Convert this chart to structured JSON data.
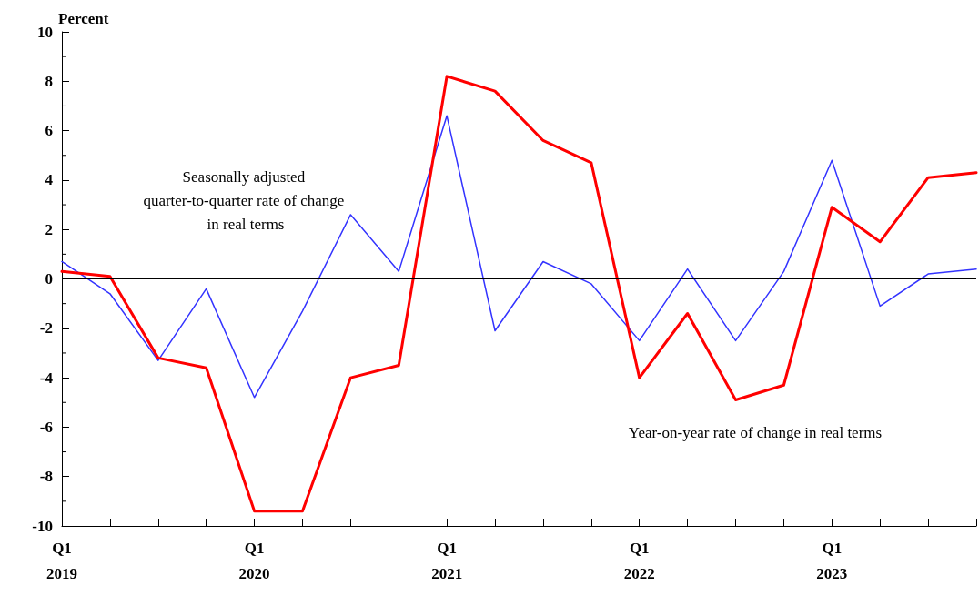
{
  "chart_data": {
    "type": "line",
    "ylabel": "Percent",
    "categories": [
      "Q1\n2019",
      null,
      null,
      null,
      "Q1\n2020",
      null,
      null,
      null,
      "Q1\n2021",
      null,
      null,
      null,
      "Q1\n2022",
      null,
      null,
      null,
      "Q1\n2023",
      null,
      null,
      null
    ],
    "series": [
      {
        "name": "Seasonally adjusted quarter-to-quarter rate of change in real terms",
        "color": "#3333ff",
        "values": [
          0.7,
          -0.6,
          -3.3,
          -0.4,
          -4.8,
          -1.3,
          2.6,
          0.3,
          6.6,
          -2.1,
          0.7,
          -0.2,
          -2.5,
          0.4,
          -2.5,
          0.3,
          4.8,
          -1.1,
          0.2,
          0.4
        ]
      },
      {
        "name": "Year-on-year rate of change in real terms",
        "color": "#ff0000",
        "values": [
          0.3,
          0.1,
          -3.2,
          -3.6,
          -9.4,
          -9.4,
          -4.0,
          -3.5,
          8.2,
          7.6,
          5.6,
          4.7,
          -4.0,
          -1.4,
          -4.9,
          -4.3,
          2.9,
          1.5,
          4.1,
          4.3
        ]
      }
    ],
    "ylim": [
      -10,
      10
    ],
    "yticks": [
      -10,
      -8,
      -6,
      -4,
      -2,
      0,
      2,
      4,
      6,
      8,
      10
    ],
    "ref_lines": [
      {
        "axis": "y",
        "value": 0,
        "color": "#000000"
      }
    ],
    "grid": false,
    "legend": false,
    "marker": "none",
    "line_style": "solid"
  }
}
